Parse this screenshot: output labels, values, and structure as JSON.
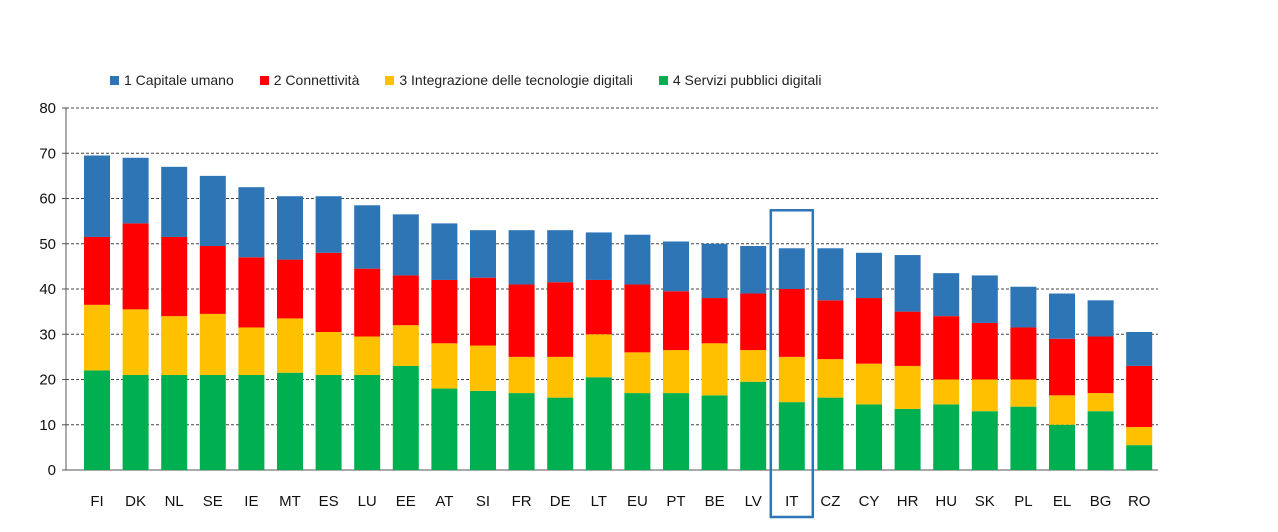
{
  "chart_data": {
    "type": "bar",
    "stacked": true,
    "categories": [
      "FI",
      "DK",
      "NL",
      "SE",
      "IE",
      "MT",
      "ES",
      "LU",
      "EE",
      "AT",
      "SI",
      "FR",
      "DE",
      "LT",
      "EU",
      "PT",
      "BE",
      "LV",
      "IT",
      "CZ",
      "CY",
      "HR",
      "HU",
      "SK",
      "PL",
      "EL",
      "BG",
      "RO"
    ],
    "series": [
      {
        "name": "4 Servizi pubblici digitali",
        "color": "#00b050",
        "values": [
          22,
          21,
          21,
          21,
          21,
          21.5,
          21,
          21,
          23,
          18,
          17.5,
          17,
          16,
          20.5,
          17,
          17,
          16.5,
          19.5,
          15,
          16,
          14.5,
          13.5,
          14.5,
          13,
          14,
          10,
          13,
          5.5
        ]
      },
      {
        "name": "3 Integrazione delle tecnologie digitali",
        "color": "#ffc000",
        "values": [
          14.5,
          14.5,
          13,
          13.5,
          10.5,
          12,
          9.5,
          8.5,
          9,
          10,
          10,
          8,
          9,
          9.5,
          9,
          9.5,
          11.5,
          7,
          10,
          8.5,
          9,
          9.5,
          5.5,
          7,
          6,
          6.5,
          4,
          4
        ]
      },
      {
        "name": "2 Connettività",
        "color": "#ff0000",
        "values": [
          15,
          19,
          17.5,
          15,
          15.5,
          13,
          17.5,
          15,
          11,
          14,
          15,
          16,
          16.5,
          12,
          15,
          13,
          10,
          12.5,
          15,
          13,
          14.5,
          12,
          14,
          12.5,
          11.5,
          12.5,
          12.5,
          13.5
        ]
      },
      {
        "name": "1 Capitale umano",
        "color": "#2e75b6",
        "values": [
          18,
          14.5,
          15.5,
          15.5,
          15.5,
          14,
          12.5,
          14,
          13.5,
          12.5,
          10.5,
          12,
          11.5,
          10.5,
          11,
          11,
          12,
          10.5,
          9,
          11.5,
          10,
          12.5,
          9.5,
          10.5,
          9,
          10,
          8,
          7.5
        ]
      }
    ],
    "ylim": [
      0,
      80
    ],
    "yticks": [
      0,
      10,
      20,
      30,
      40,
      50,
      60,
      70,
      80
    ],
    "grid": true,
    "legend_position": "top",
    "highlight_category": "IT",
    "highlight_color": "#2e75b6"
  },
  "legend": [
    {
      "label": "1 Capitale umano",
      "color": "#2e75b6"
    },
    {
      "label": "2 Connettività",
      "color": "#ff0000"
    },
    {
      "label": "3 Integrazione delle tecnologie digitali",
      "color": "#ffc000"
    },
    {
      "label": "4 Servizi pubblici digitali",
      "color": "#00b050"
    }
  ]
}
